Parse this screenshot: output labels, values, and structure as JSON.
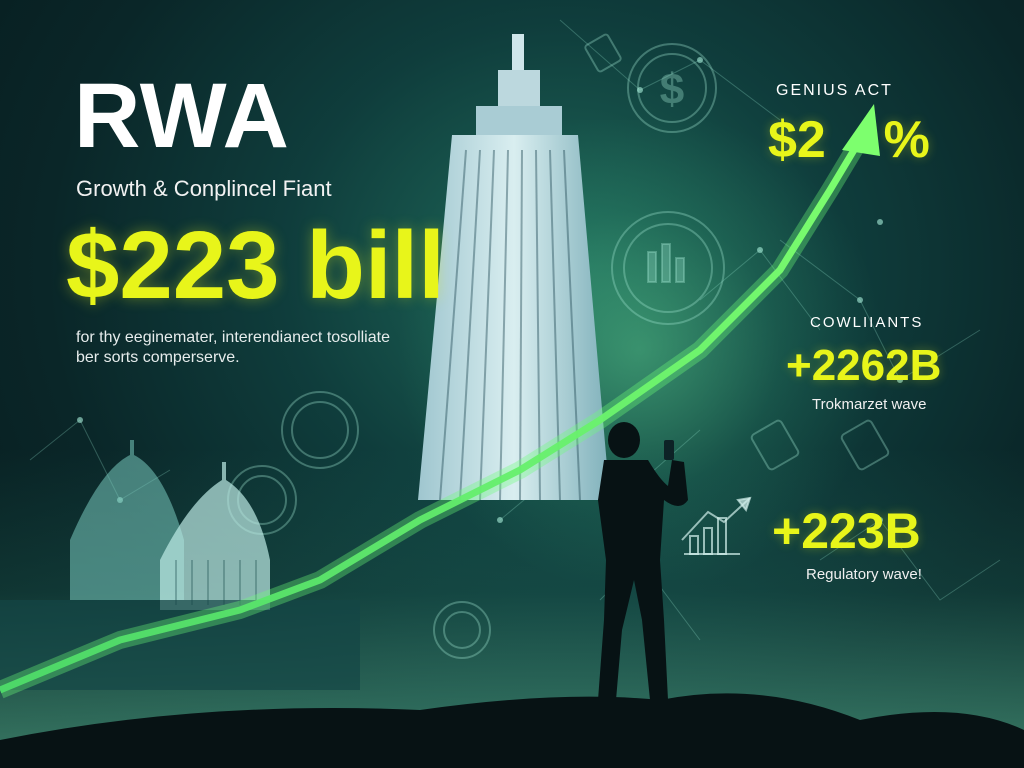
{
  "header": {
    "title": "RWA",
    "subtitle": "Growth & Conplincel Fiant",
    "amount": "$223 bill",
    "description": "for thy eeginemater, interendianect tosolliate ber sorts comperserve."
  },
  "panels": {
    "genius": {
      "label": "GENIUS  ACT",
      "value": "$2    %"
    },
    "compliants": {
      "label": "COWLIIANTS",
      "value": "+2262B",
      "caption": "Trokmarzet wave"
    },
    "regulatory": {
      "value": "+223B",
      "caption": "Regulatory wave!"
    }
  },
  "colors": {
    "accent_yellow": "#e8f51a",
    "arrow_green": "#5cf56a",
    "background_dark": "#0a2628",
    "teal": "#1f6a5a"
  },
  "icons": [
    "dollar-coin-icon",
    "chart-coin-icon",
    "seal-icon",
    "bar-chart-icon",
    "capitol-dome-icon",
    "skyscraper-icon",
    "person-silhouette-icon"
  ]
}
